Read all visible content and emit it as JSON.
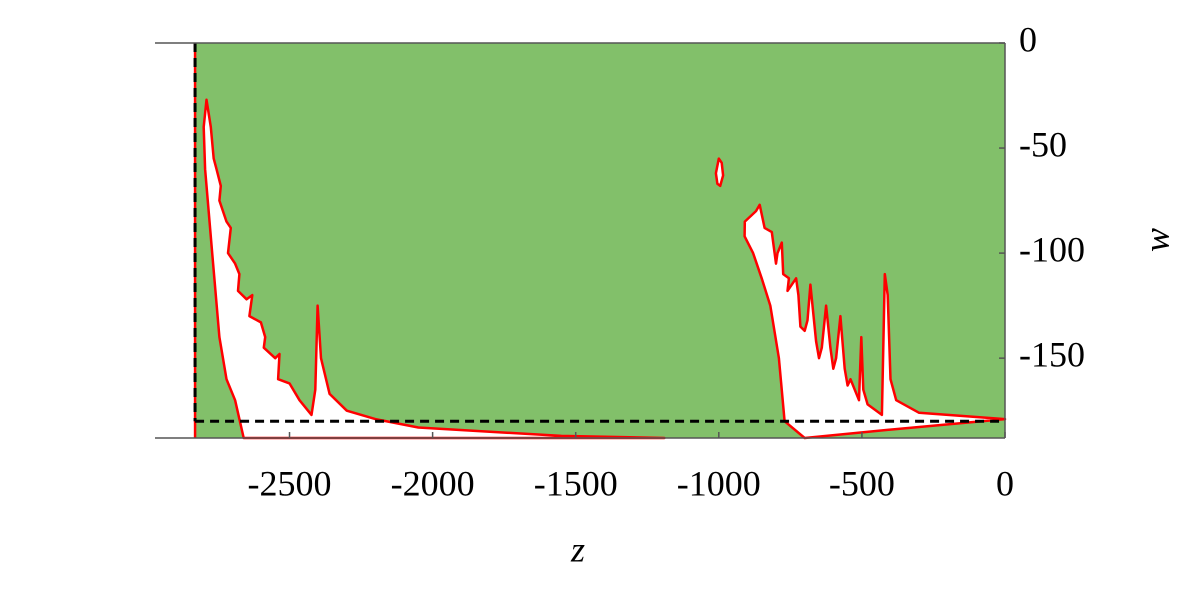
{
  "chart_data": {
    "type": "region",
    "xlabel": "z",
    "ylabel": "w",
    "xlim": [
      -2970,
      0
    ],
    "ylim": [
      -188,
      0
    ],
    "xticks": [
      -2500,
      -2000,
      -1500,
      -1000,
      -500,
      0
    ],
    "yticks": [
      0,
      -50,
      -100,
      -150
    ],
    "domain_color": "#82c06a",
    "boundary_color": "#ff0000",
    "dash_color": "#000000",
    "domain_xmin": -2830,
    "dashed_w": -180,
    "regions": [
      {
        "x": [
          -2790,
          -2775,
          -2765,
          -2755,
          -2740,
          -2745,
          -2720,
          -2705,
          -2715,
          -2690,
          -2675,
          -2680,
          -2650,
          -2630,
          -2640,
          -2600,
          -2585,
          -2590,
          -2550,
          -2535,
          -2540,
          -2500,
          -2465,
          -2423,
          -2410,
          -2402,
          -2390,
          -2360,
          -2300,
          -2200,
          -2050,
          -1800,
          -1550,
          -1190,
          -2660,
          -2690,
          -2720,
          -2745,
          -2770,
          -2795,
          -2800
        ],
        "y": [
          -27,
          -40,
          -55,
          -60,
          -68,
          -75,
          -85,
          -88,
          -100,
          -105,
          -110,
          -118,
          -122,
          -120,
          -130,
          -133,
          -140,
          -145,
          -150,
          -148,
          -160,
          -162,
          -170,
          -177,
          -165,
          -125,
          -150,
          -167,
          -175,
          -179,
          -183,
          -185,
          -187,
          -188,
          -188,
          -170,
          -160,
          -140,
          -100,
          -60,
          -40
        ]
      },
      {
        "x": [
          -909,
          -870,
          -857,
          -840,
          -815,
          -800,
          -795,
          -780,
          -775,
          -755,
          -760,
          -730,
          -722,
          -715,
          -700,
          -690,
          -680,
          -660,
          -650,
          -640,
          -625,
          -610,
          -600,
          -590,
          -575,
          -560,
          -550,
          -540,
          -510,
          -502,
          -495,
          -480,
          -430,
          -420,
          -410,
          -400,
          -380,
          -300,
          -200,
          -100,
          0,
          -400,
          -700,
          -770,
          -790,
          -820,
          -850,
          -880,
          -910
        ],
        "y": [
          -85,
          -80,
          -77,
          -88,
          -90,
          -105,
          -100,
          -95,
          -110,
          -112,
          -118,
          -112,
          -120,
          -135,
          -137,
          -132,
          -115,
          -142,
          -150,
          -145,
          -125,
          -145,
          -155,
          -150,
          -130,
          -155,
          -163,
          -160,
          -170,
          -140,
          -165,
          -172,
          -177,
          -110,
          -120,
          -160,
          -170,
          -176,
          -177,
          -178,
          -179,
          -184,
          -188,
          -180,
          -150,
          -125,
          -112,
          -100,
          -92
        ]
      },
      {
        "x": [
          -1000,
          -990,
          -985,
          -995,
          -1005,
          -1010
        ],
        "y": [
          -55,
          -57,
          -63,
          -68,
          -67,
          -62
        ]
      }
    ]
  }
}
